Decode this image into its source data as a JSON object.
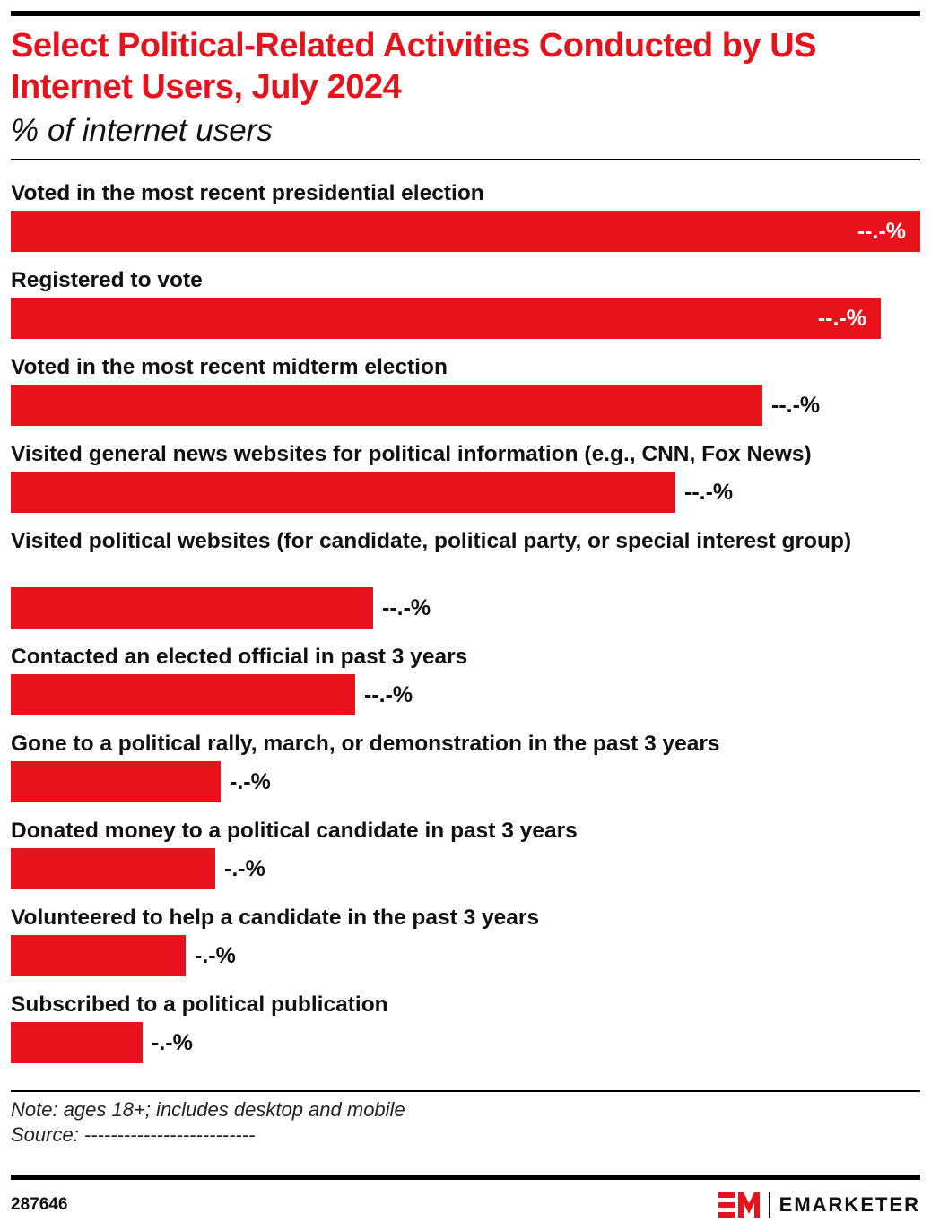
{
  "header": {
    "title": "Select Political-Related Activities Conducted by US Internet Users, July 2024",
    "subtitle": "% of internet users"
  },
  "chart_data": {
    "type": "bar",
    "orientation": "horizontal",
    "title": "Select Political-Related Activities Conducted by US Internet Users, July 2024",
    "subtitle": "% of internet users",
    "categories": [
      "Voted in the most recent presidential election",
      "Registered to vote",
      "Voted in the most recent midterm election",
      "Visited general news websites for political information (e.g., CNN, Fox News)",
      "Visited political websites (for candidate, political party, or special interest group)",
      "Contacted an elected official in past 3 years",
      "Gone to a political rally, march, or demonstration in the past 3 years",
      "Donated money to a political candidate in past 3 years",
      "Volunteered to help a candidate in the past 3 years",
      "Subscribed to a political publication"
    ],
    "values": [
      69.0,
      66.0,
      57.0,
      50.4,
      27.5,
      26.1,
      15.9,
      15.5,
      13.3,
      10.0
    ],
    "value_labels": [
      "--.-%",
      "--.-%",
      "--.-%",
      "--.-%",
      "--.-%",
      "--.-%",
      "-.-%",
      "-.-%",
      "-.-%",
      "-.-%"
    ],
    "label_inside": [
      true,
      true,
      false,
      false,
      false,
      false,
      false,
      false,
      false,
      false
    ],
    "xlim": [
      0,
      69.0
    ],
    "grid": false,
    "legend": "none",
    "bar_color": "#e8121d"
  },
  "footer": {
    "note": "Note: ages 18+; includes desktop and mobile",
    "source": "Source: --------------------------",
    "chart_id": "287646",
    "brand": "EMARKETER"
  },
  "colors": {
    "accent": "#e8121d",
    "text": "#111111"
  }
}
